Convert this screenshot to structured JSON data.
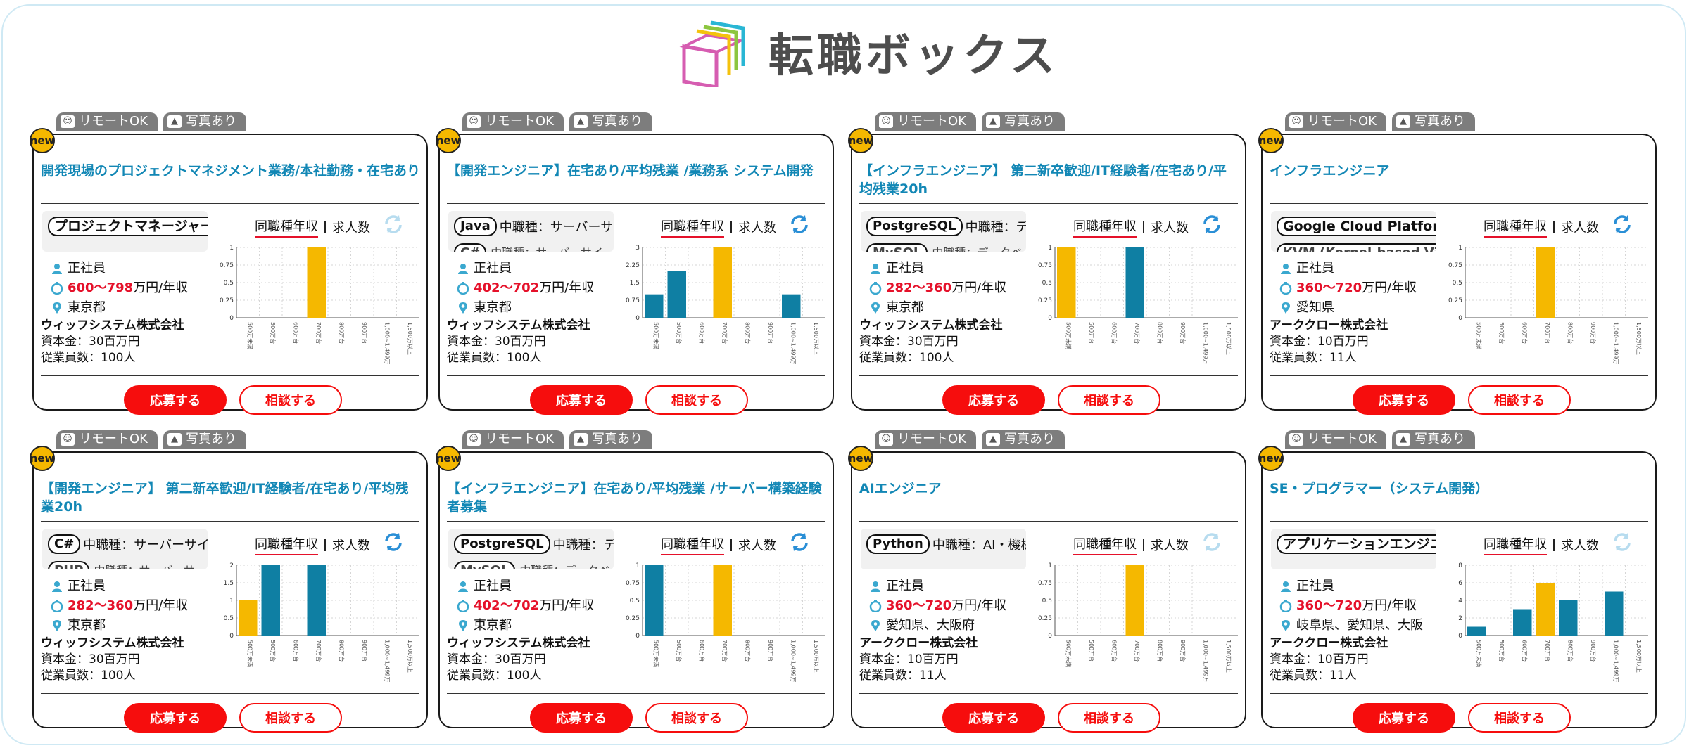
{
  "site": {
    "logo_text": "転職ボックス"
  },
  "labels": {
    "new": "new",
    "remote": "リモートOK",
    "photo": "写真あり",
    "employment": "正社員",
    "salary_suffix": "万円/年収",
    "toggle_salary": "同職種年収",
    "toggle_count": "求人数",
    "apply": "応募する",
    "consult": "相談する"
  },
  "colors": {
    "accent": "#1287b5",
    "red": "#e5112a",
    "bar_highlight": "#f5b800",
    "bar_default": "#0f7fa3"
  },
  "chart_categories": [
    "500万未満",
    "500万台",
    "600万台",
    "700万台",
    "800万台",
    "900万台",
    "1,000~1,499万",
    "1,500万以上"
  ],
  "cards": [
    {
      "title": "開発現場のプロジェクトマネジメント業務/本社勤務・在宅あり",
      "main_tag": "プロジェクトマネージャー",
      "sub_label": "",
      "second_tag": "",
      "second_sub": "",
      "salary": "600〜798",
      "location": "東京都",
      "company": "ウィッフシステム株式会社",
      "capital": "資本金：30百万円",
      "employees": "従業員数：100人",
      "refresh_active": false,
      "chart_data": {
        "type": "bar",
        "y_ticks": [
          "1",
          "0.75",
          "0.5",
          "0.25",
          "0"
        ],
        "ylim": [
          0,
          1
        ],
        "values": [
          0,
          0,
          0,
          1,
          0,
          0,
          0,
          0
        ],
        "highlight": 3
      }
    },
    {
      "title": "【開発エンジニア】在宅あり/平均残業 /業務系 システム開発",
      "main_tag": "Java",
      "sub_label": "中職種：サーバーサ",
      "second_tag": "C#",
      "second_sub": "中職種：サーバーサイ",
      "salary": "402〜702",
      "location": "東京都",
      "company": "ウィッフシステム株式会社",
      "capital": "資本金：30百万円",
      "employees": "従業員数：100人",
      "refresh_active": true,
      "chart_data": {
        "type": "bar",
        "y_ticks": [
          "3",
          "2.25",
          "1.5",
          "0.75",
          "0"
        ],
        "ylim": [
          0,
          3
        ],
        "values": [
          1,
          2,
          0,
          3,
          0,
          0,
          1,
          0
        ],
        "highlight": 3
      }
    },
    {
      "title": "【インフラエンジニア】 第二新卒歓迎/IT経験者/在宅あり/平均残業20h",
      "main_tag": "PostgreSQL",
      "sub_label": "中職種：デー",
      "second_tag": "MySQL",
      "second_sub": "中職種：データベ",
      "salary": "282〜360",
      "location": "東京都",
      "company": "ウィッフシステム株式会社",
      "capital": "資本金：30百万円",
      "employees": "従業員数：100人",
      "refresh_active": true,
      "chart_data": {
        "type": "bar",
        "y_ticks": [
          "1",
          "0.75",
          "0.5",
          "0.25",
          "0"
        ],
        "ylim": [
          0,
          1
        ],
        "values": [
          1,
          0,
          0,
          1,
          0,
          0,
          0,
          0
        ],
        "highlight": 0
      }
    },
    {
      "title": "インフラエンジニア",
      "main_tag": "Google Cloud Platform (G",
      "sub_label": "",
      "second_tag": "KVM (Kernel-based Virt",
      "second_sub": "",
      "salary": "360〜720",
      "location": "愛知県",
      "company": "アーククロー株式会社",
      "capital": "資本金：10百万円",
      "employees": "従業員数：11人",
      "refresh_active": true,
      "chart_data": {
        "type": "bar",
        "y_ticks": [
          "1",
          "0.75",
          "0.5",
          "0.25",
          "0"
        ],
        "ylim": [
          0,
          1
        ],
        "values": [
          0,
          0,
          0,
          1,
          0,
          0,
          0,
          0
        ],
        "highlight": 3
      }
    },
    {
      "title": "【開発エンジニア】 第二新卒歓迎/IT経験者/在宅あり/平均残業20h",
      "main_tag": "C#",
      "sub_label": "中職種：サーバーサイ",
      "second_tag": "PHP",
      "second_sub": "中職種：サーバーサ",
      "salary": "282〜360",
      "location": "東京都",
      "company": "ウィッフシステム株式会社",
      "capital": "資本金：30百万円",
      "employees": "従業員数：100人",
      "refresh_active": true,
      "chart_data": {
        "type": "bar",
        "y_ticks": [
          "2",
          "1.5",
          "1",
          "0.5",
          "0"
        ],
        "ylim": [
          0,
          2
        ],
        "values": [
          1,
          2,
          0,
          2,
          0,
          0,
          0,
          0
        ],
        "highlight": 0
      }
    },
    {
      "title": "【インフラエンジニア】在宅あり/平均残業 /サーバー構築経験者募集",
      "main_tag": "PostgreSQL",
      "sub_label": "中職種：デー",
      "second_tag": "MySQL",
      "second_sub": "中職種：データベ",
      "salary": "402〜702",
      "location": "東京都",
      "company": "ウィッフシステム株式会社",
      "capital": "資本金：30百万円",
      "employees": "従業員数：100人",
      "refresh_active": true,
      "chart_data": {
        "type": "bar",
        "y_ticks": [
          "1",
          "0.75",
          "0.5",
          "0.25",
          "0"
        ],
        "ylim": [
          0,
          1
        ],
        "values": [
          1,
          0,
          0,
          1,
          0,
          0,
          0,
          0
        ],
        "highlight": 3
      }
    },
    {
      "title": "AIエンジニア",
      "main_tag": "Python",
      "sub_label": "中職種：AI・機械",
      "second_tag": "",
      "second_sub": "",
      "salary": "360〜720",
      "location": "愛知県、大阪府",
      "company": "アーククロー株式会社",
      "capital": "資本金：10百万円",
      "employees": "従業員数：11人",
      "refresh_active": false,
      "chart_data": {
        "type": "bar",
        "y_ticks": [
          "1",
          "0.75",
          "0.5",
          "0.25",
          "0"
        ],
        "ylim": [
          0,
          1
        ],
        "values": [
          0,
          0,
          0,
          1,
          0,
          0,
          0,
          0
        ],
        "highlight": 3
      }
    },
    {
      "title": "SE・プログラマー（システム開発）",
      "main_tag": "アプリケーションエンジニ",
      "sub_label": "",
      "second_tag": "",
      "second_sub": "",
      "salary": "360〜720",
      "location": "岐阜県、愛知県、大阪",
      "company": "アーククロー株式会社",
      "capital": "資本金：10百万円",
      "employees": "従業員数：11人",
      "refresh_active": false,
      "chart_data": {
        "type": "bar",
        "y_ticks": [
          "8",
          "6",
          "4",
          "2",
          "0"
        ],
        "ylim": [
          0,
          8
        ],
        "values": [
          1,
          0,
          3,
          6,
          4,
          0,
          5,
          0
        ],
        "highlight": 3
      }
    }
  ]
}
